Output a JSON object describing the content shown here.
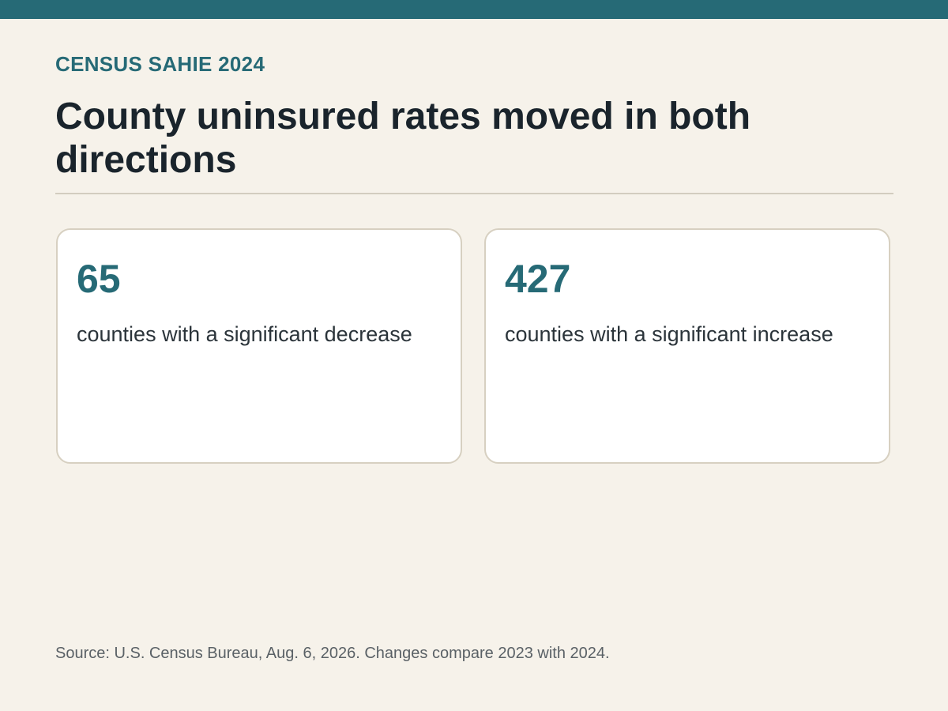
{
  "header": {
    "eyebrow": "CENSUS SAHIE 2024",
    "title": "County uninsured rates moved in both directions"
  },
  "stats": [
    {
      "value": "65",
      "label": "counties with a significant decrease"
    },
    {
      "value": "427",
      "label": "counties with a significant increase"
    }
  ],
  "footer": {
    "source": "Source: U.S. Census Bureau, Aug. 6, 2026. Changes compare 2023 with 2024."
  },
  "colors": {
    "accent": "#266a76",
    "background": "#f6f2ea",
    "card_background": "#ffffff",
    "card_border": "#d7d0c1",
    "heading_text": "#1a242c",
    "muted_text": "#5a6166"
  }
}
